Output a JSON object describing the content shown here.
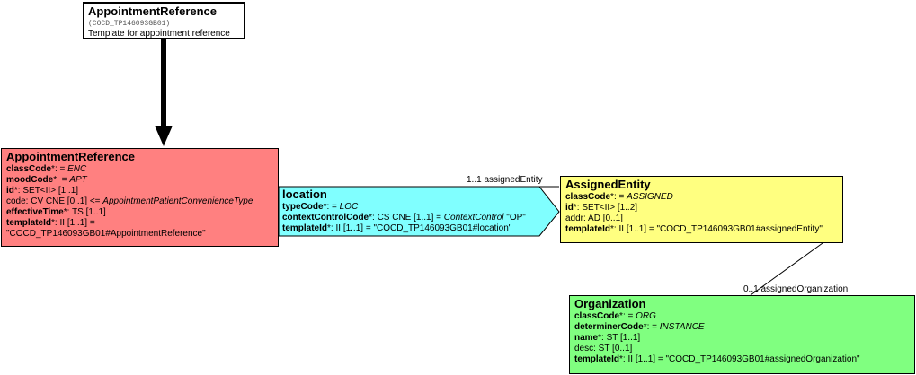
{
  "colors": {
    "template_header": "#ffffff",
    "appointment_reference": "#ff8080",
    "location": "#80ffff",
    "assigned_entity": "#ffff80",
    "organization": "#80ff80"
  },
  "template_box": {
    "title": "AppointmentReference",
    "code": "(COCD_TP146093GB01)",
    "description": "Template for appointment reference"
  },
  "appointment_reference": {
    "title": "AppointmentReference",
    "lines": [
      {
        "name": "classCode",
        "req": "*",
        "rest": ": = ",
        "value": "ENC"
      },
      {
        "name": "moodCode",
        "req": "*",
        "rest": ": = ",
        "value": "APT"
      },
      {
        "name": "id",
        "req": "*",
        "rest": ": SET<II> [1..1]",
        "value": ""
      },
      {
        "text": "code: CV CNE [0..1] <= ",
        "value": "AppointmentPatientConvenienceType"
      },
      {
        "name": "effectiveTime",
        "req": "*",
        "rest": ": TS [1..1]",
        "value": ""
      },
      {
        "name": "templateId",
        "req": "*",
        "rest": ": II [1..1] =",
        "value": ""
      },
      {
        "text": "\"COCD_TP146093GB01#AppointmentReference\"",
        "value": ""
      }
    ]
  },
  "location": {
    "title": "location",
    "lines": [
      {
        "name": "typeCode",
        "req": "*",
        "rest": ": = ",
        "value": "LOC"
      },
      {
        "name": "contextControlCode",
        "req": "*",
        "rest": ": CS CNE [1..1] = ",
        "value": "ContextControl",
        "tail": " \"OP\""
      },
      {
        "name": "templateId",
        "req": "*",
        "rest": ": II [1..1] = \"COCD_TP146093GB01#location\"",
        "value": ""
      }
    ]
  },
  "assigned_entity": {
    "title": "AssignedEntity",
    "lines": [
      {
        "name": "classCode",
        "req": "*",
        "rest": ": = ",
        "value": "ASSIGNED"
      },
      {
        "name": "id",
        "req": "*",
        "rest": ": SET<II> [1..2]",
        "value": ""
      },
      {
        "text": "addr: AD [0..1]",
        "value": ""
      },
      {
        "name": "templateId",
        "req": "*",
        "rest": ": II [1..1] = \"COCD_TP146093GB01#assignedEntity\"",
        "value": ""
      }
    ]
  },
  "organization": {
    "title": "Organization",
    "lines": [
      {
        "name": "classCode",
        "req": "*",
        "rest": ": = ",
        "value": "ORG"
      },
      {
        "name": "determinerCode",
        "req": "*",
        "rest": ": = ",
        "value": "INSTANCE"
      },
      {
        "name": "name",
        "req": "*",
        "rest": ": ST [1..1]",
        "value": ""
      },
      {
        "text": "desc: ST [0..1]",
        "value": ""
      },
      {
        "name": "templateId",
        "req": "*",
        "rest": ": II [1..1] = \"COCD_TP146093GB01#assignedOrganization\"",
        "value": ""
      }
    ]
  },
  "links": {
    "assigned_entity_label": "1..1 assignedEntity",
    "assigned_organization_label": "0..1 assignedOrganization"
  }
}
